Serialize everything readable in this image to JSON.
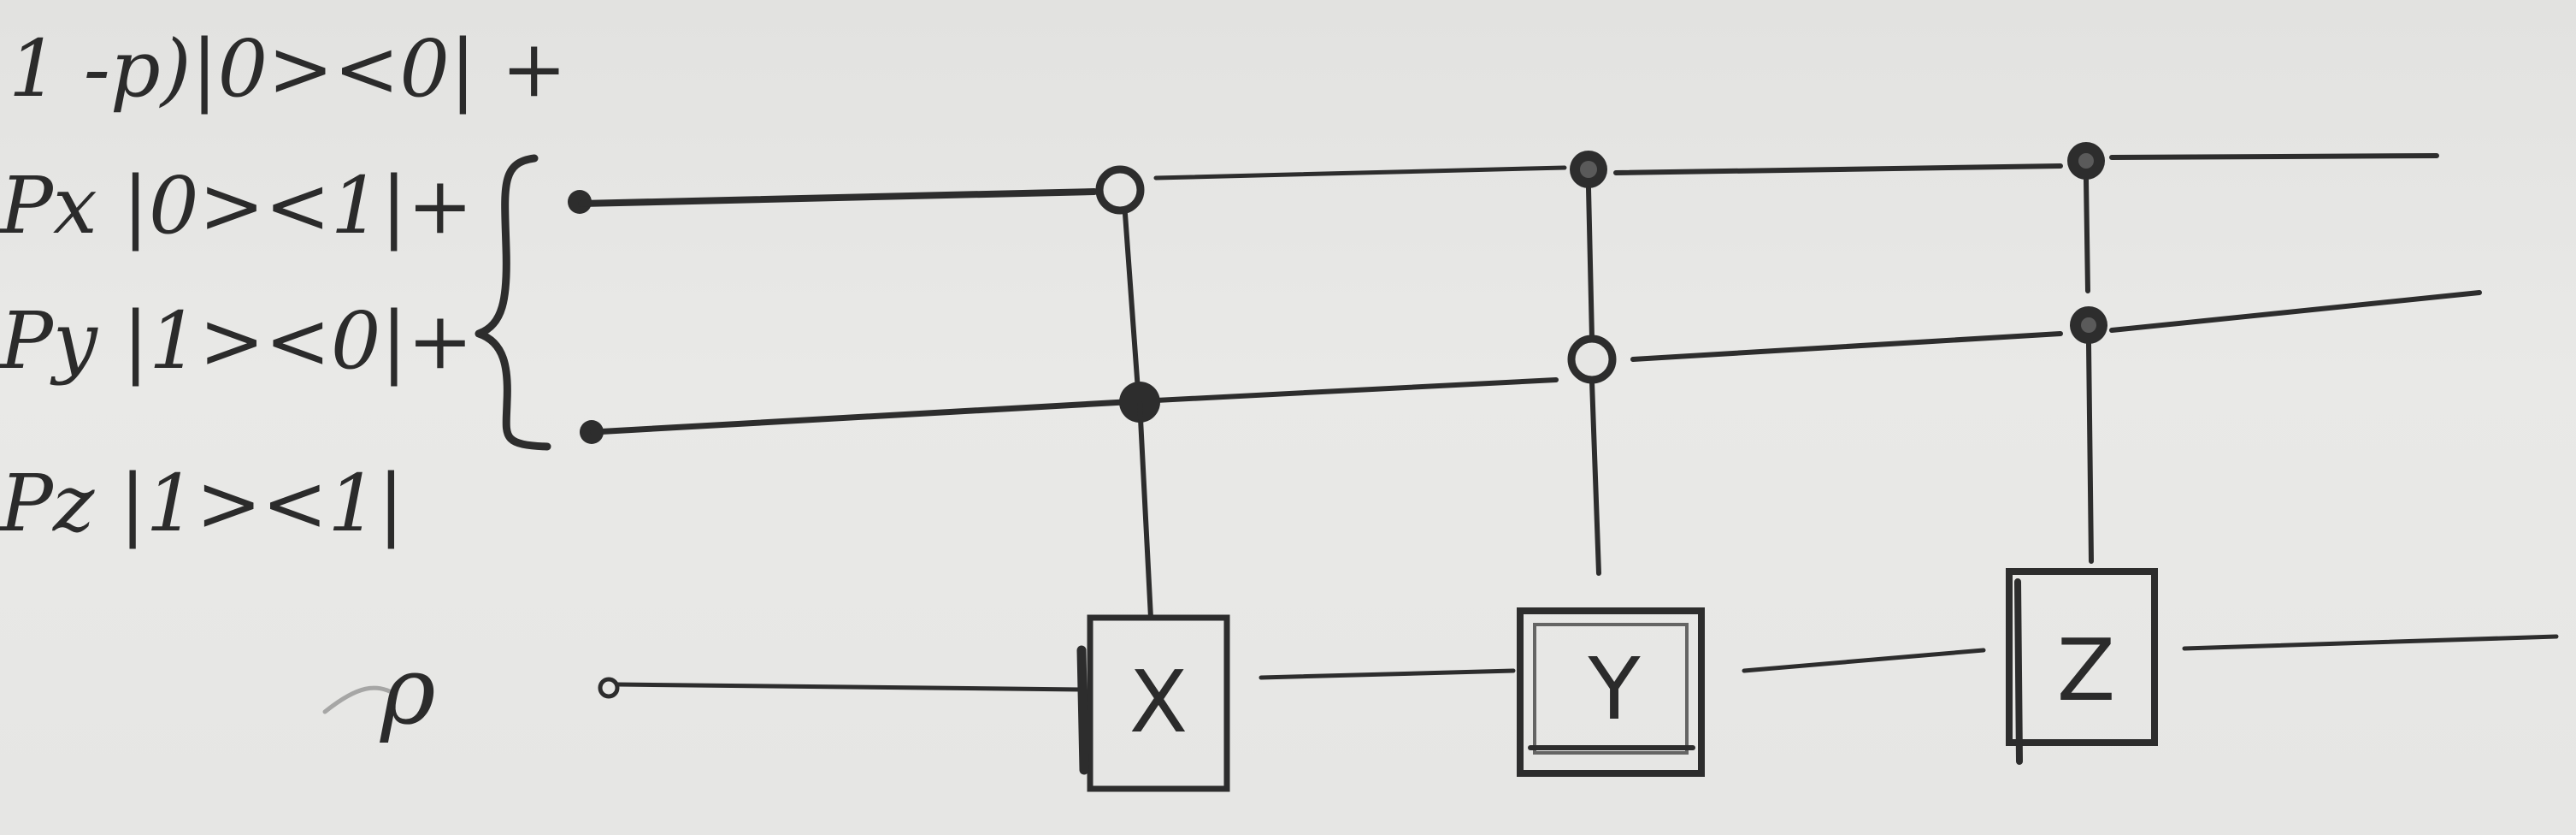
{
  "ink_color": "#2d2d2d",
  "paper_color": "#e6e6e4",
  "kraus_terms": [
    "1 -p)|0><0| +",
    "Px |0><1|+",
    "Py |1><0|+",
    "Pz |1><1|"
  ],
  "input_state": "ρ",
  "gates": [
    {
      "label": "X",
      "controls": [
        "open",
        "closed"
      ]
    },
    {
      "label": "Y",
      "controls": [
        "closed",
        "open"
      ]
    },
    {
      "label": "Z",
      "controls": [
        "closed",
        "closed"
      ]
    }
  ]
}
